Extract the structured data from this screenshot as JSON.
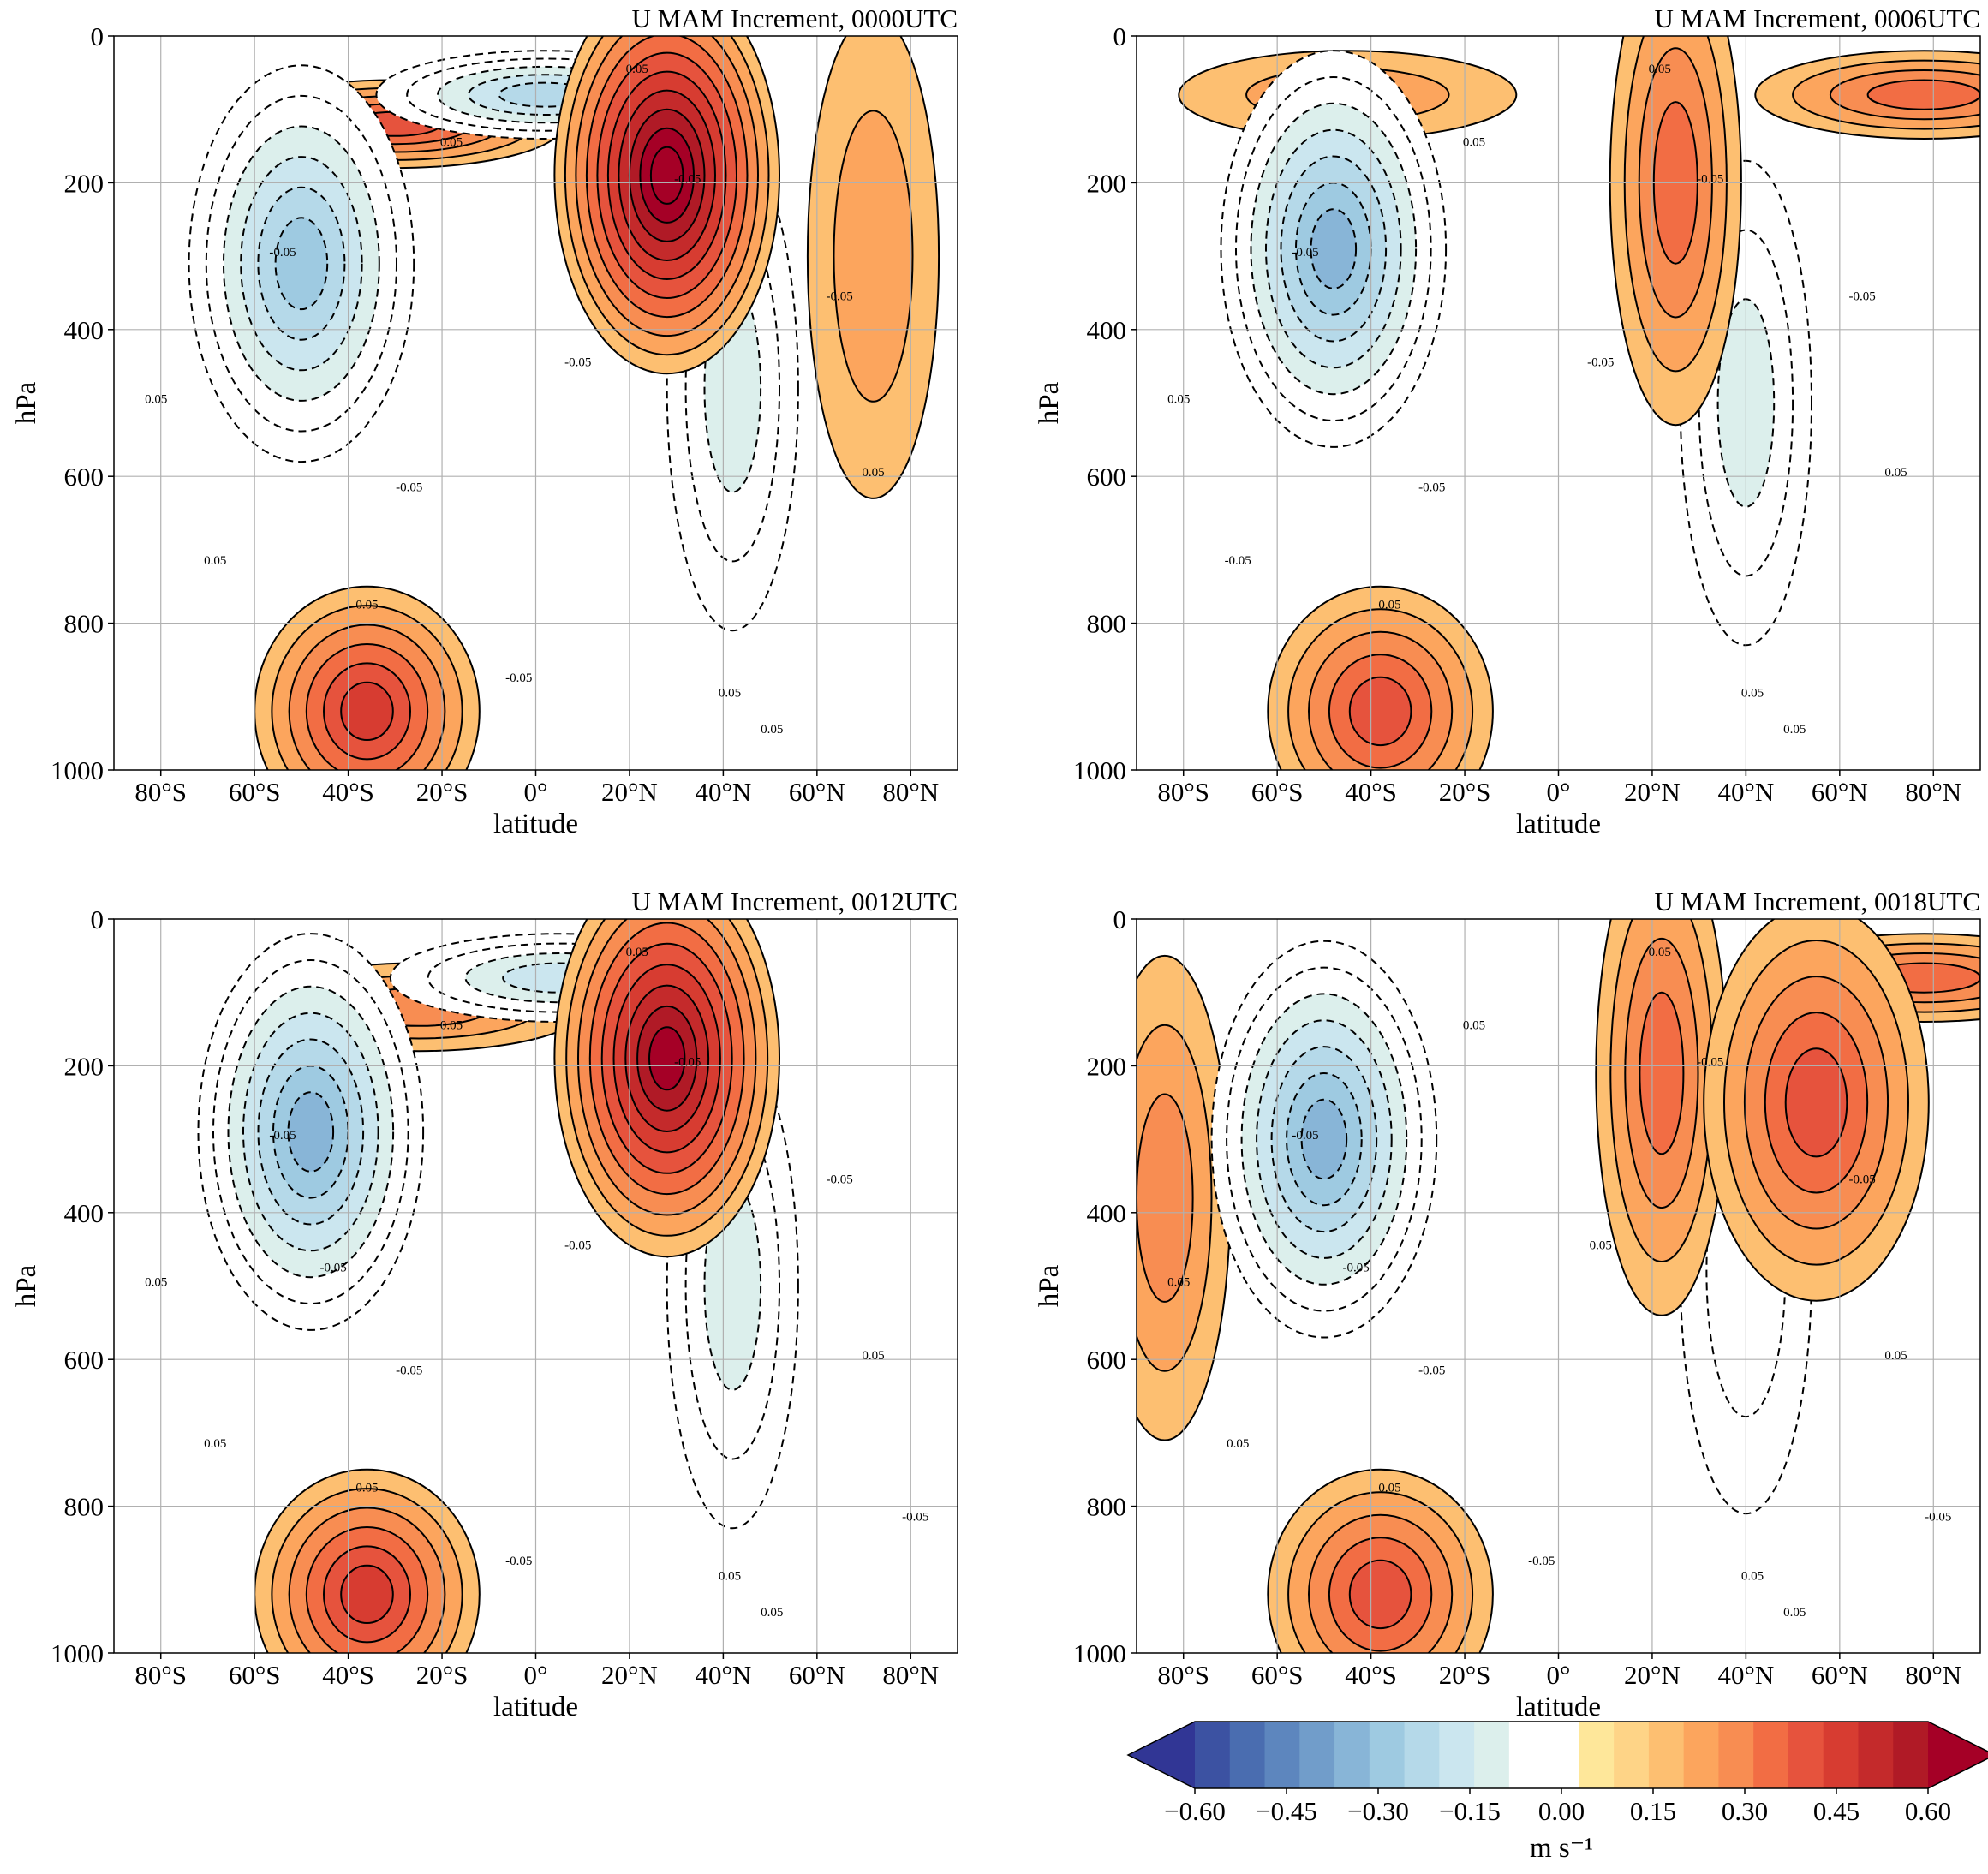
{
  "figure": {
    "colorbar": {
      "ticks": [
        "−0.60",
        "−0.45",
        "−0.30",
        "−0.15",
        "0.00",
        "0.15",
        "0.30",
        "0.45",
        "0.60"
      ],
      "unit_label": "m s⁻¹",
      "min": -0.6,
      "max": 0.6,
      "step": 0.05,
      "extend": "both",
      "colors": [
        "#313695",
        "#3c52a2",
        "#4a6db0",
        "#5d86be",
        "#719dca",
        "#88b5d7",
        "#9ecae1",
        "#b5d9e9",
        "#cbe6ef",
        "#dcefec",
        "#ffffff",
        "#ffffff",
        "#fee79a",
        "#fed487",
        "#fdbf71",
        "#fca55d",
        "#f88d52",
        "#f26d44",
        "#e6533d",
        "#d73c31",
        "#c42a2b",
        "#b01a26",
        "#a50026"
      ]
    }
  },
  "chart_data": [
    {
      "type": "contour",
      "title": "U MAM Increment, 0000UTC",
      "xlabel": "latitude",
      "ylabel": "hPa",
      "xticks": [
        "80°S",
        "60°S",
        "40°S",
        "20°S",
        "0°",
        "20°N",
        "40°N",
        "60°N",
        "80°N"
      ],
      "yticks": [
        "0",
        "200",
        "400",
        "600",
        "800",
        "1000"
      ],
      "xlim": [
        -90,
        90
      ],
      "ylim": [
        1000,
        0
      ],
      "grid": true,
      "contour_interval": 0.05,
      "features": [
        {
          "lat": 28,
          "p": 190,
          "value": 0.5
        },
        {
          "lat": -36,
          "p": 920,
          "value": 0.3
        },
        {
          "lat": -50,
          "p": 310,
          "value": -0.3
        },
        {
          "lat": 42,
          "p": 480,
          "value": -0.15
        },
        {
          "lat": -30,
          "p": 120,
          "value": 0.25
        },
        {
          "lat": 2,
          "p": 80,
          "value": -0.25
        },
        {
          "lat": 72,
          "p": 300,
          "value": 0.1
        }
      ],
      "contour_labels": [
        "0.05",
        "0.05",
        "0.05",
        "0.05",
        "0.05",
        "0.05",
        "0.05",
        "0.05",
        "-0.05",
        "-0.05",
        "-0.05",
        "-0.05",
        "-0.05",
        "-0.05"
      ]
    },
    {
      "type": "contour",
      "title": "U MAM Increment, 0006UTC",
      "xlabel": "latitude",
      "ylabel": "hPa",
      "xticks": [
        "80°S",
        "60°S",
        "40°S",
        "20°S",
        "0°",
        "20°N",
        "40°N",
        "60°N",
        "80°N"
      ],
      "yticks": [
        "0",
        "200",
        "400",
        "600",
        "800",
        "1000"
      ],
      "xlim": [
        -90,
        90
      ],
      "ylim": [
        1000,
        0
      ],
      "grid": true,
      "contour_interval": 0.05,
      "features": [
        {
          "lat": -48,
          "p": 290,
          "value": -0.35
        },
        {
          "lat": -38,
          "p": 920,
          "value": 0.25
        },
        {
          "lat": 40,
          "p": 500,
          "value": -0.15
        },
        {
          "lat": 25,
          "p": 200,
          "value": 0.2
        },
        {
          "lat": 78,
          "p": 80,
          "value": 0.2
        },
        {
          "lat": -45,
          "p": 80,
          "value": 0.1
        }
      ],
      "contour_labels": [
        "0.05",
        "0.05",
        "0.05",
        "0.05",
        "0.05",
        "0.05",
        "0.05",
        "-0.05",
        "-0.05",
        "-0.05",
        "-0.05",
        "-0.05",
        "-0.05"
      ]
    },
    {
      "type": "contour",
      "title": "U MAM Increment, 0012UTC",
      "xlabel": "latitude",
      "ylabel": "hPa",
      "xticks": [
        "80°S",
        "60°S",
        "40°S",
        "20°S",
        "0°",
        "20°N",
        "40°N",
        "60°N",
        "80°N"
      ],
      "yticks": [
        "0",
        "200",
        "400",
        "600",
        "800",
        "1000"
      ],
      "xlim": [
        -90,
        90
      ],
      "ylim": [
        1000,
        0
      ],
      "grid": true,
      "contour_interval": 0.05,
      "features": [
        {
          "lat": 28,
          "p": 190,
          "value": 0.45
        },
        {
          "lat": -36,
          "p": 920,
          "value": 0.3
        },
        {
          "lat": -48,
          "p": 290,
          "value": -0.35
        },
        {
          "lat": 42,
          "p": 500,
          "value": -0.15
        },
        {
          "lat": 5,
          "p": 80,
          "value": -0.2
        },
        {
          "lat": -25,
          "p": 120,
          "value": 0.15
        }
      ],
      "contour_labels": [
        "0.05",
        "0.05",
        "0.05",
        "0.05",
        "0.05",
        "0.05",
        "0.05",
        "0.05",
        "-0.05",
        "-0.05",
        "-0.05",
        "-0.05",
        "-0.05",
        "-0.05",
        "-0.05",
        "-0.05"
      ]
    },
    {
      "type": "contour",
      "title": "U MAM Increment, 0018UTC",
      "xlabel": "latitude",
      "ylabel": "hPa",
      "xticks": [
        "80°S",
        "60°S",
        "40°S",
        "20°S",
        "0°",
        "20°N",
        "40°N",
        "60°N",
        "80°N"
      ],
      "yticks": [
        "0",
        "200",
        "400",
        "600",
        "800",
        "1000"
      ],
      "xlim": [
        -90,
        90
      ],
      "ylim": [
        1000,
        0
      ],
      "grid": true,
      "contour_interval": 0.05,
      "features": [
        {
          "lat": -50,
          "p": 300,
          "value": -0.35
        },
        {
          "lat": -38,
          "p": 920,
          "value": 0.25
        },
        {
          "lat": 55,
          "p": 250,
          "value": 0.25
        },
        {
          "lat": 22,
          "p": 210,
          "value": 0.2
        },
        {
          "lat": 78,
          "p": 80,
          "value": 0.2
        },
        {
          "lat": -84,
          "p": 380,
          "value": 0.15
        },
        {
          "lat": 40,
          "p": 480,
          "value": -0.1
        }
      ],
      "contour_labels": [
        "0.05",
        "0.05",
        "0.05",
        "0.05",
        "0.05",
        "0.05",
        "0.05",
        "0.05",
        "0.05",
        "-0.05",
        "-0.05",
        "-0.05",
        "-0.05",
        "-0.05",
        "-0.05",
        "-0.05"
      ]
    }
  ]
}
